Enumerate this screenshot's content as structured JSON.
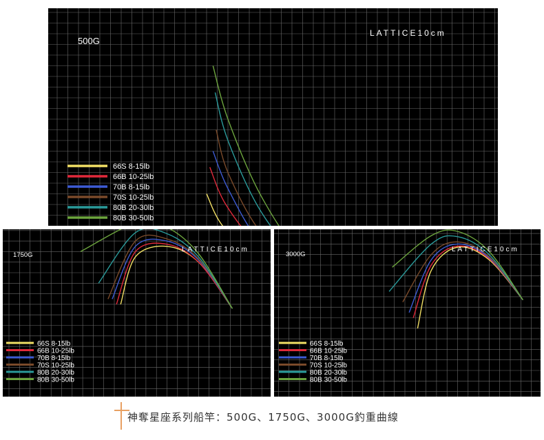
{
  "caption": "神奪星座系列船竿：500G、1750G、3000G釣重曲線",
  "legend": [
    {
      "label": "66S 8-15lb",
      "color": "#f2e065"
    },
    {
      "label": "66B 10-25lb",
      "color": "#e0293a"
    },
    {
      "label": "70B 8-15lb",
      "color": "#3d5bd4"
    },
    {
      "label": "70S 10-25lb",
      "color": "#7a4a2a"
    },
    {
      "label": "80B 20-30lb",
      "color": "#2a9b9b"
    },
    {
      "label": "80B 30-50lb",
      "color": "#6da53e"
    }
  ],
  "chart_data": [
    {
      "type": "line",
      "title": "500G",
      "annotation": "LATTICE10cm",
      "grid": true,
      "legend_position": "bottom-left",
      "series": [
        {
          "name": "66S 8-15lb",
          "points": [
            [
              13.0,
              -22.1
            ],
            [
              9.0,
              -20.5
            ],
            [
              5.0,
              -19.5
            ],
            [
              1.5,
              -16.0
            ],
            [
              0,
              -13.0
            ]
          ]
        },
        {
          "name": "66B 10-25lb",
          "points": [
            [
              13.0,
              -22.1
            ],
            [
              9.0,
              -20.5
            ],
            [
              5.0,
              -18.0
            ],
            [
              1.8,
              -14.0
            ],
            [
              0.3,
              -10.5
            ]
          ]
        },
        {
          "name": "70B 8-15lb",
          "points": [
            [
              13.0,
              -22.1
            ],
            [
              9.0,
              -20.3
            ],
            [
              5.0,
              -17.5
            ],
            [
              2.0,
              -12.5
            ],
            [
              0.6,
              -9.0
            ]
          ]
        },
        {
          "name": "70S 10-25lb",
          "points": [
            [
              13.0,
              -22.1
            ],
            [
              9.0,
              -20.0
            ],
            [
              5.0,
              -16.5
            ],
            [
              2.0,
              -11.0
            ],
            [
              0.9,
              -7.0
            ]
          ]
        },
        {
          "name": "80B 20-30lb",
          "points": [
            [
              13.0,
              -22.1
            ],
            [
              9.0,
              -19.5
            ],
            [
              5.0,
              -14.5
            ],
            [
              2.0,
              -8.0
            ],
            [
              0.8,
              -3.5
            ]
          ]
        },
        {
          "name": "80B 30-50lb",
          "points": [
            [
              13.0,
              -22.1
            ],
            [
              9.0,
              -19.0
            ],
            [
              5.0,
              -13.0
            ],
            [
              2.0,
              -6.0
            ],
            [
              0.6,
              -1.0
            ]
          ]
        }
      ],
      "marker": [
        18.0,
        -18.3
      ]
    },
    {
      "type": "line",
      "title": "1750G",
      "annotation": "LATTICE10cm",
      "grid": true,
      "legend_position": "bottom-left",
      "series": [
        {
          "name": "66S 8-15lb",
          "points": [
            [
              11.2,
              -13.4
            ],
            [
              8.0,
              -9.0
            ],
            [
              5.0,
              -7.5
            ],
            [
              2.0,
              -8.5
            ],
            [
              0.6,
              -13.0
            ]
          ]
        },
        {
          "name": "66B 10-25lb",
          "points": [
            [
              11.2,
              -13.4
            ],
            [
              8.0,
              -9.0
            ],
            [
              5.0,
              -7.3
            ],
            [
              2.0,
              -8.0
            ],
            [
              0.2,
              -13.0
            ]
          ]
        },
        {
          "name": "70B 8-15lb",
          "points": [
            [
              11.2,
              -13.4
            ],
            [
              8.0,
              -8.8
            ],
            [
              5.0,
              -7.0
            ],
            [
              2.0,
              -7.5
            ],
            [
              -0.2,
              -12.5
            ]
          ]
        },
        {
          "name": "70S 10-25lb",
          "points": [
            [
              11.2,
              -13.4
            ],
            [
              8.0,
              -8.7
            ],
            [
              5.0,
              -6.8
            ],
            [
              2.0,
              -7.0
            ],
            [
              -0.6,
              -12.5
            ]
          ]
        },
        {
          "name": "80B 20-30lb",
          "points": [
            [
              11.2,
              -13.4
            ],
            [
              8.0,
              -8.5
            ],
            [
              5.0,
              -6.3
            ],
            [
              2.0,
              -6.2
            ],
            [
              -1.5,
              -11.0
            ]
          ]
        },
        {
          "name": "80B 30-50lb",
          "points": [
            [
              11.2,
              -13.4
            ],
            [
              8.0,
              -8.2
            ],
            [
              5.0,
              -5.7
            ],
            [
              2.0,
              -5.3
            ],
            [
              -3.2,
              -8.0
            ]
          ]
        }
      ],
      "marker": [
        20.2,
        -13.6
      ]
    },
    {
      "type": "line",
      "title": "3000G",
      "annotation": "LATTICE10cm",
      "grid": true,
      "legend_position": "bottom-left",
      "series": [
        {
          "name": "66S 8-15lb",
          "points": [
            [
              11.2,
              -13.3
            ],
            [
              8.0,
              -9.5
            ],
            [
              5.0,
              -8.3
            ],
            [
              2.5,
              -10.5
            ],
            [
              1.2,
              -16.0
            ]
          ]
        },
        {
          "name": "66B 10-25lb",
          "points": [
            [
              11.2,
              -13.3
            ],
            [
              8.0,
              -9.4
            ],
            [
              5.0,
              -8.2
            ],
            [
              2.5,
              -10.0
            ],
            [
              0.8,
              -15.0
            ]
          ]
        },
        {
          "name": "70B 8-15lb",
          "points": [
            [
              11.2,
              -13.3
            ],
            [
              8.0,
              -9.3
            ],
            [
              5.0,
              -8.0
            ],
            [
              2.5,
              -9.5
            ],
            [
              0.4,
              -14.5
            ]
          ]
        },
        {
          "name": "70S 10-25lb",
          "points": [
            [
              11.2,
              -13.3
            ],
            [
              8.0,
              -9.2
            ],
            [
              5.0,
              -7.8
            ],
            [
              2.5,
              -9.0
            ],
            [
              -0.2,
              -13.5
            ]
          ]
        },
        {
          "name": "80B 20-30lb",
          "points": [
            [
              11.2,
              -13.3
            ],
            [
              8.0,
              -9.0
            ],
            [
              5.0,
              -7.3
            ],
            [
              2.5,
              -8.0
            ],
            [
              -1.5,
              -12.5
            ]
          ]
        },
        {
          "name": "80B 30-50lb",
          "points": [
            [
              11.2,
              -13.3
            ],
            [
              8.0,
              -8.7
            ],
            [
              5.0,
              -6.8
            ],
            [
              2.5,
              -7.2
            ],
            [
              -1.2,
              -10.2
            ]
          ]
        }
      ],
      "marker": [
        20.0,
        -13.2
      ]
    }
  ]
}
